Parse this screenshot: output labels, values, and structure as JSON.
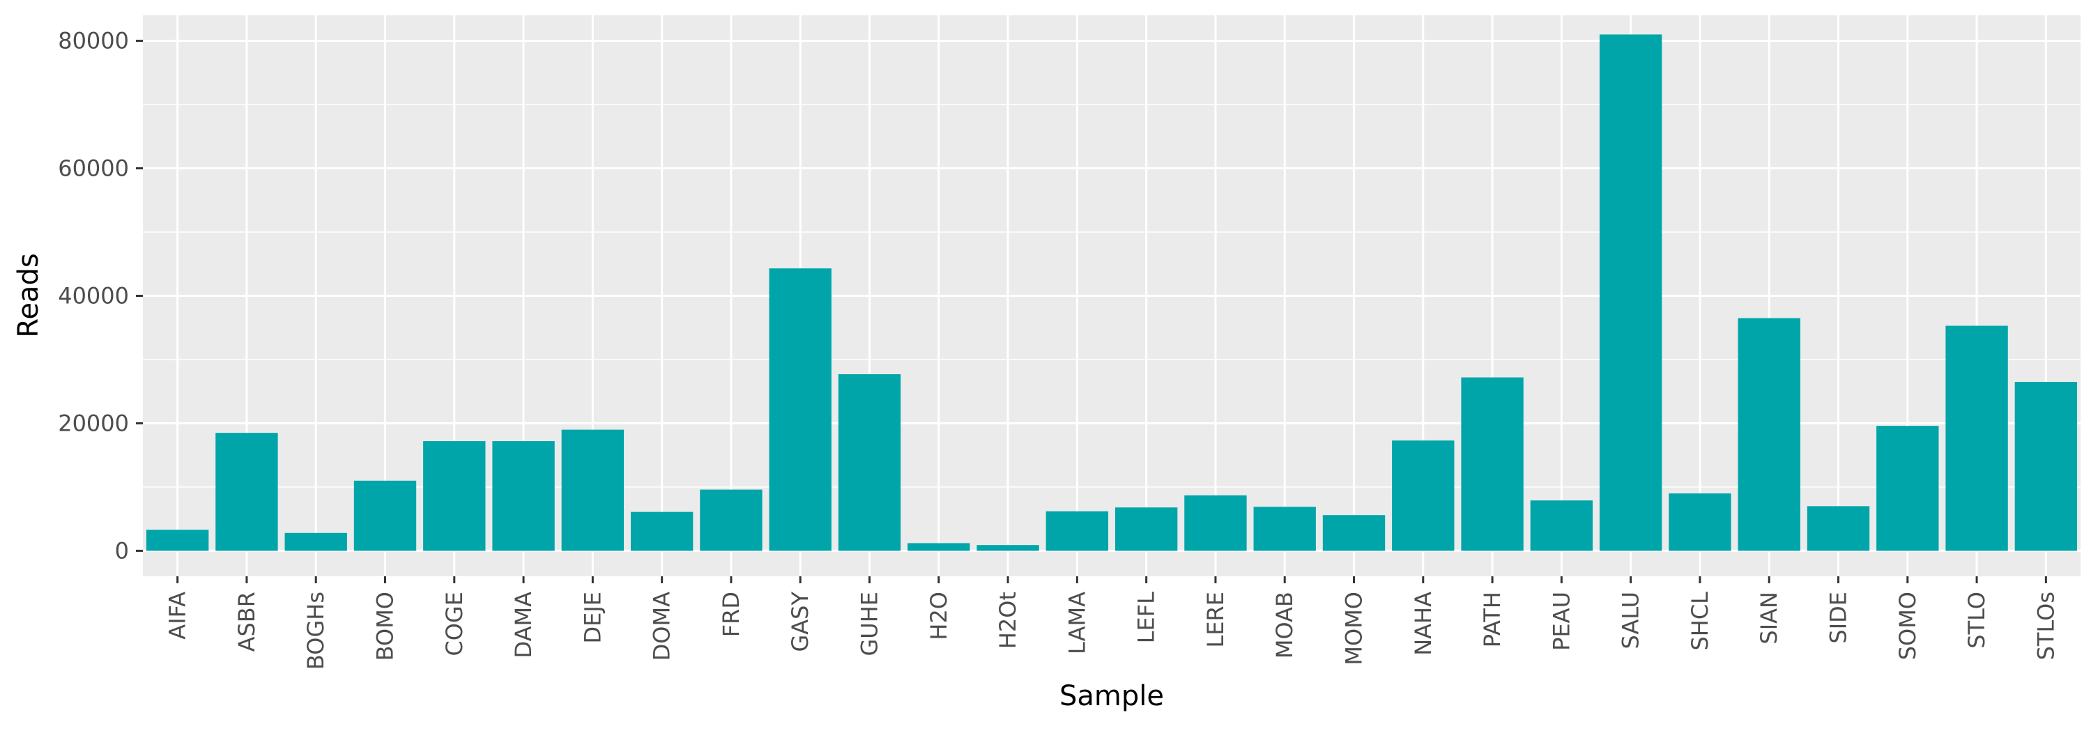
{
  "chart_data": {
    "type": "bar",
    "xlabel": "Sample",
    "ylabel": "Reads",
    "ylim": [
      -4000,
      84000
    ],
    "yticks": [
      0,
      20000,
      40000,
      60000,
      80000
    ],
    "ytick_labels": [
      "0",
      "20000",
      "40000",
      "60000",
      "80000"
    ],
    "grid": true,
    "bar_color": "#00A5A9",
    "panel_color": "#EBEBEB",
    "categories": [
      "AIFA",
      "ASBR",
      "BOGHs",
      "BOMO",
      "COGE",
      "DAMA",
      "DEJE",
      "DOMA",
      "FRD",
      "GASY",
      "GUHE",
      "H2O",
      "H2Ot",
      "LAMA",
      "LEFL",
      "LERE",
      "MOAB",
      "MOMO",
      "NAHA",
      "PATH",
      "PEAU",
      "SALU",
      "SHCL",
      "SIAN",
      "SIDE",
      "SOMO",
      "STLO",
      "STLOs"
    ],
    "values": [
      3300,
      18500,
      2800,
      11000,
      17200,
      17200,
      19000,
      6100,
      9600,
      44300,
      27700,
      1200,
      900,
      6200,
      6800,
      8700,
      6900,
      5600,
      17300,
      27200,
      7900,
      81000,
      9000,
      36500,
      7000,
      19600,
      35300,
      26500
    ]
  }
}
